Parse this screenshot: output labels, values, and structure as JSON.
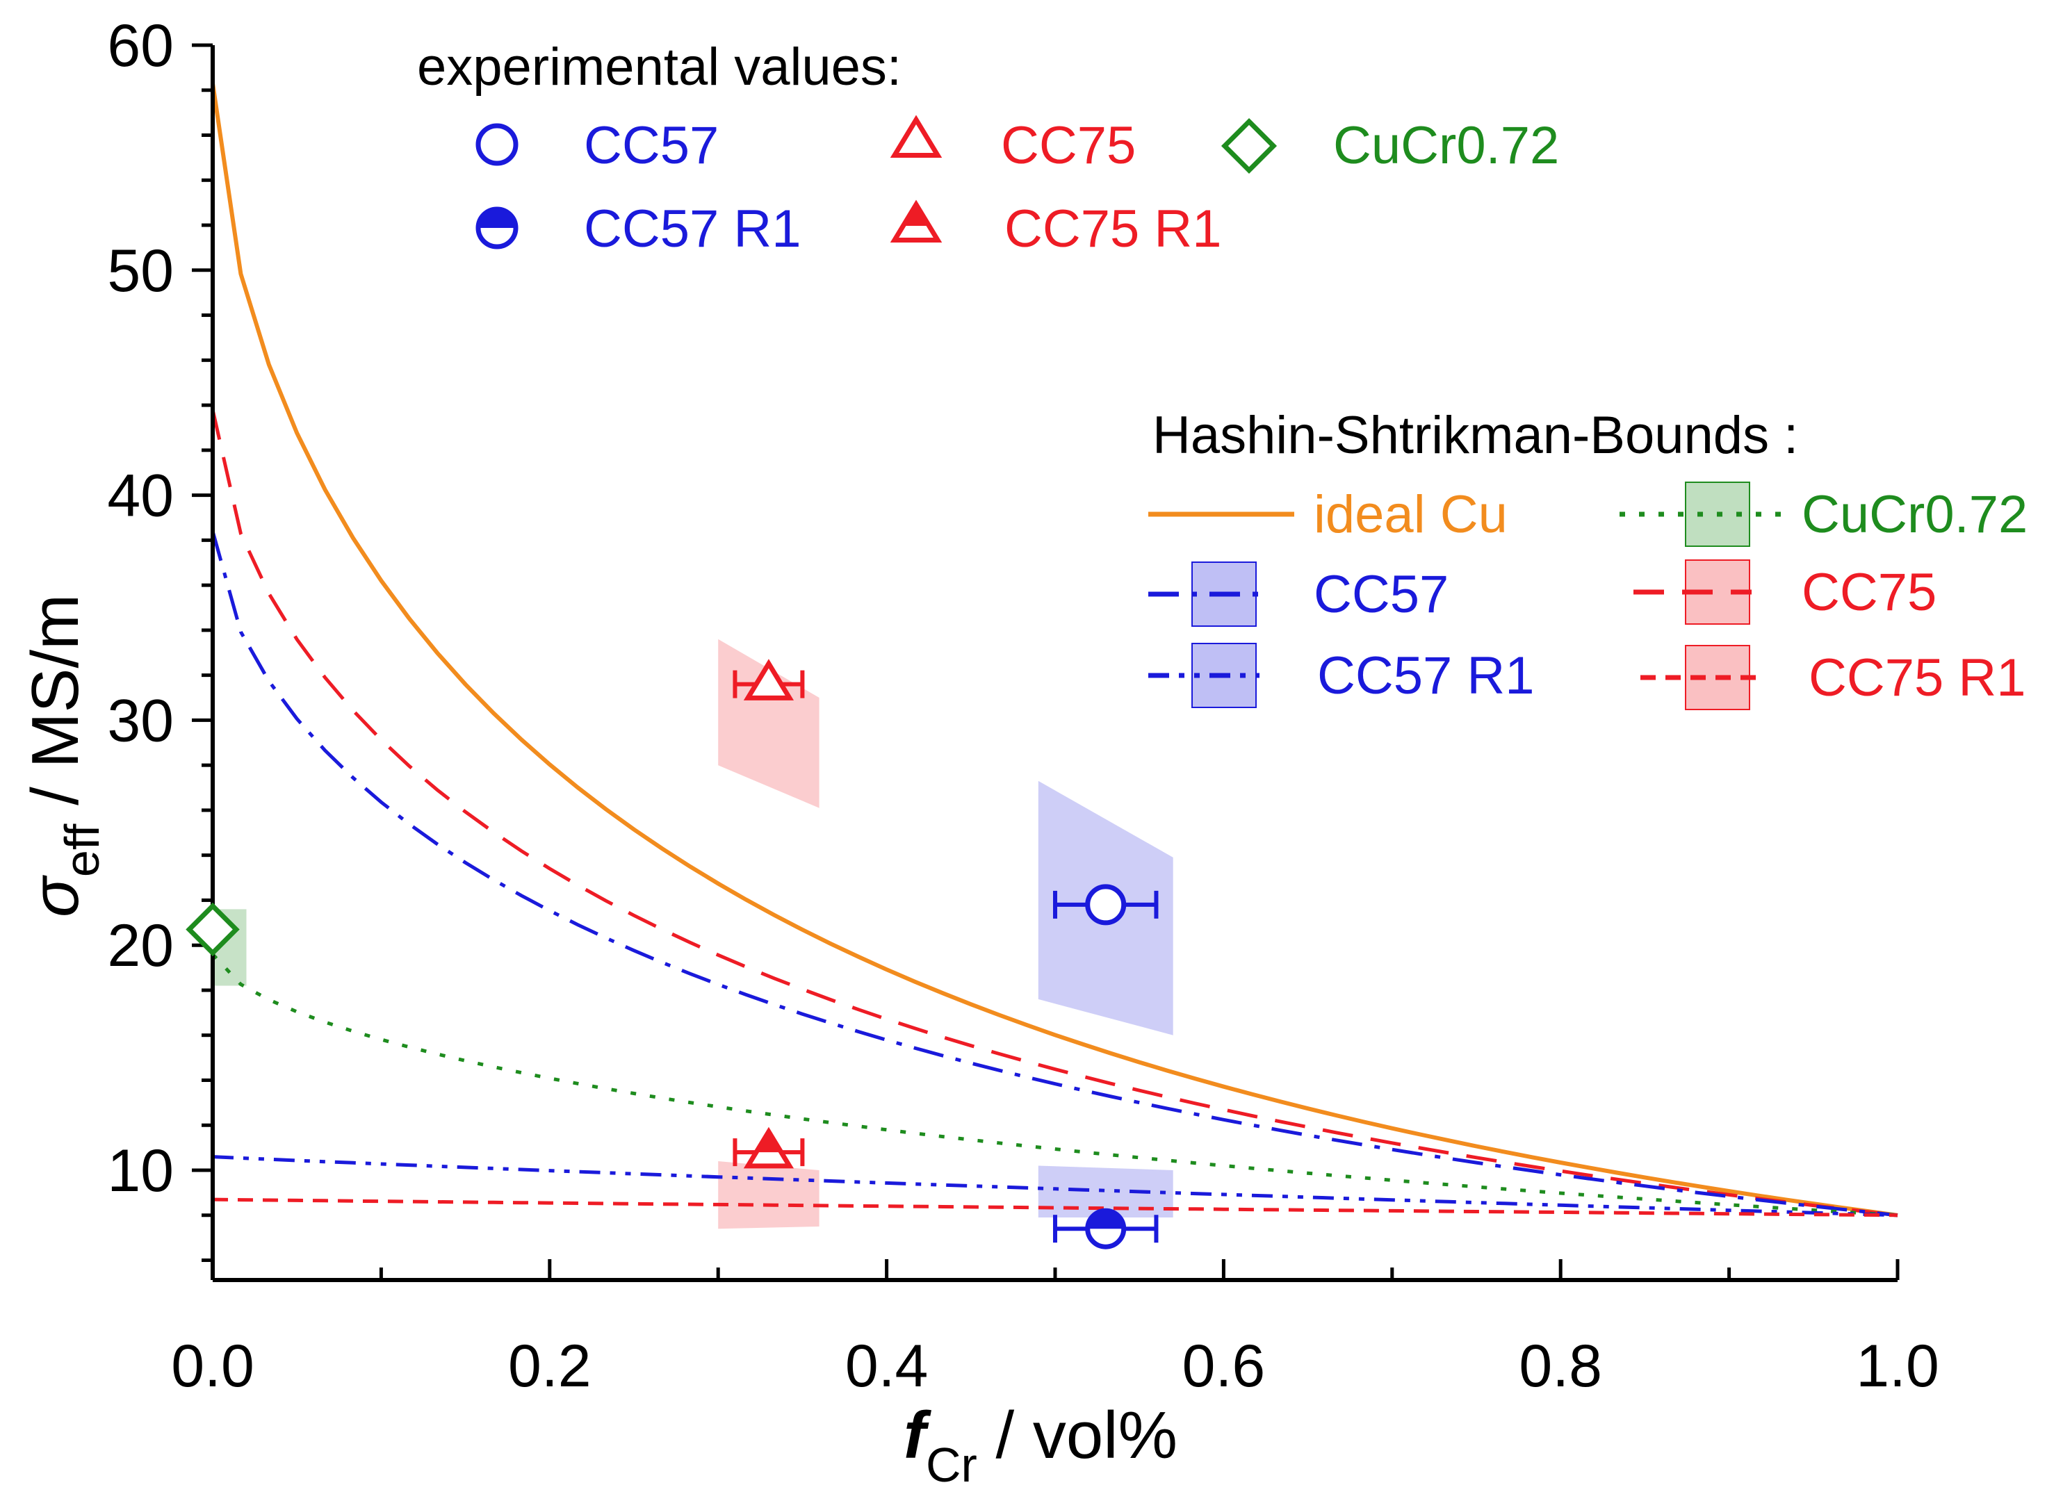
{
  "chart_data": {
    "type": "line",
    "x_axis": {
      "label_symbol": "f",
      "label_subscript": "Cr",
      "label_unit": " / vol%",
      "range": [
        0.0,
        1.0
      ],
      "ticks": [
        0.0,
        0.2,
        0.4,
        0.6,
        0.8,
        1.0
      ],
      "tick_labels": [
        "0.0",
        "0.2",
        "0.4",
        "0.6",
        "0.8",
        "1.0"
      ],
      "minor_step": 0.1
    },
    "y_axis": {
      "label_symbol": "σ",
      "label_subscript": "eff",
      "label_unit": " / MS/m",
      "range": [
        5,
        60
      ],
      "ticks": [
        10,
        20,
        30,
        40,
        50,
        60
      ],
      "tick_labels": [
        "10",
        "20",
        "30",
        "40",
        "50",
        "60"
      ],
      "minor_step": 2
    },
    "series": [
      {
        "key": "ideal_cu",
        "name": "ideal Cu",
        "color": "#f28c1e",
        "dash": "solid",
        "start": 58.3,
        "end": 8.0,
        "convex": true
      },
      {
        "key": "cc75",
        "name": "CC75",
        "color": "#ee1c25",
        "dash": "dashed",
        "start": 43.8,
        "end": 8.0,
        "convex": true
      },
      {
        "key": "cc57",
        "name": "CC57",
        "color": "#1a1adb",
        "dash": "dashdot",
        "start": 38.4,
        "end": 8.0,
        "convex": true
      },
      {
        "key": "cucr072",
        "name": "CuCr0.72",
        "color": "#1e8c1e",
        "dash": "dotted",
        "start": 19.6,
        "end": 8.0,
        "convex": true
      },
      {
        "key": "cc57r1",
        "name": "CC57 R1",
        "color": "#1a1adb",
        "dash": "dashdotdot",
        "start": 10.6,
        "end": 8.0,
        "convex": false
      },
      {
        "key": "cc75r1",
        "name": "CC75 R1",
        "color": "#ee1c25",
        "dash": "shortdash",
        "start": 8.7,
        "end": 8.0,
        "convex": false
      }
    ],
    "bands": [
      {
        "key": "band_cc75",
        "color": "#ee1c25",
        "opacity": 0.22,
        "x0": 0.3,
        "x1": 0.36,
        "y0_top": 33.6,
        "y0_bot": 28.0,
        "y1_top": 31.0,
        "y1_bot": 26.1
      },
      {
        "key": "band_cc57",
        "color": "#3a3ae0",
        "opacity": 0.25,
        "x0": 0.49,
        "x1": 0.57,
        "y0_top": 27.3,
        "y0_bot": 17.6,
        "y1_top": 23.9,
        "y1_bot": 16.0
      },
      {
        "key": "band_cucr",
        "color": "#1e8c1e",
        "opacity": 0.25,
        "x0": 0.0,
        "x1": 0.02,
        "y0_top": 21.6,
        "y0_bot": 18.2,
        "y1_top": 21.6,
        "y1_bot": 18.2
      },
      {
        "key": "band_cc75r1",
        "color": "#ee1c25",
        "opacity": 0.22,
        "x0": 0.3,
        "x1": 0.36,
        "y0_top": 10.4,
        "y0_bot": 7.4,
        "y1_top": 10.0,
        "y1_bot": 7.5
      },
      {
        "key": "band_cc57r1",
        "color": "#3a3ae0",
        "opacity": 0.25,
        "x0": 0.49,
        "x1": 0.57,
        "y0_top": 10.2,
        "y0_bot": 7.9,
        "y1_top": 10.0,
        "y1_bot": 7.9
      }
    ],
    "points": [
      {
        "key": "pt_cc57",
        "name": "CC57",
        "marker": "circle-open",
        "color": "#1a1adb",
        "x": 0.53,
        "y": 21.8,
        "xerr": 0.03
      },
      {
        "key": "pt_cc57r1",
        "name": "CC57 R1",
        "marker": "circle-half",
        "color": "#1a1adb",
        "x": 0.53,
        "y": 7.4,
        "xerr": 0.03
      },
      {
        "key": "pt_cc75",
        "name": "CC75",
        "marker": "triangle-open",
        "color": "#ee1c25",
        "x": 0.33,
        "y": 31.6,
        "xerr": 0.02
      },
      {
        "key": "pt_cc75r1",
        "name": "CC75 R1",
        "marker": "triangle-half",
        "color": "#ee1c25",
        "x": 0.33,
        "y": 10.8,
        "xerr": 0.02
      },
      {
        "key": "pt_cucr",
        "name": "CuCr0.72",
        "marker": "diamond-open",
        "color": "#1e8c1e",
        "x": 0.0,
        "y": 20.7,
        "xerr": 0
      }
    ],
    "legend_experimental": {
      "title": "experimental values:",
      "entries": [
        {
          "label": "CC57",
          "marker": "circle-open",
          "color": "#1a1adb"
        },
        {
          "label": "CC75",
          "marker": "triangle-open",
          "color": "#ee1c25"
        },
        {
          "label": "CuCr0.72",
          "marker": "diamond-open",
          "color": "#1e8c1e"
        },
        {
          "label": "CC57 R1",
          "marker": "circle-half",
          "color": "#1a1adb"
        },
        {
          "label": "CC75 R1",
          "marker": "triangle-half",
          "color": "#ee1c25"
        }
      ]
    },
    "legend_bounds": {
      "title": "Hashin-Shtrikman-Bounds :",
      "entries": [
        {
          "label": "ideal Cu",
          "series": "ideal_cu",
          "swatch": false
        },
        {
          "label": "CuCr0.72",
          "series": "cucr072",
          "swatch": true
        },
        {
          "label": "CC57",
          "series": "cc57",
          "swatch": true
        },
        {
          "label": "CC75",
          "series": "cc75",
          "swatch": true
        },
        {
          "label": "CC57 R1",
          "series": "cc57r1",
          "swatch": true
        },
        {
          "label": "CC75 R1",
          "series": "cc75r1",
          "swatch": true
        }
      ]
    }
  }
}
